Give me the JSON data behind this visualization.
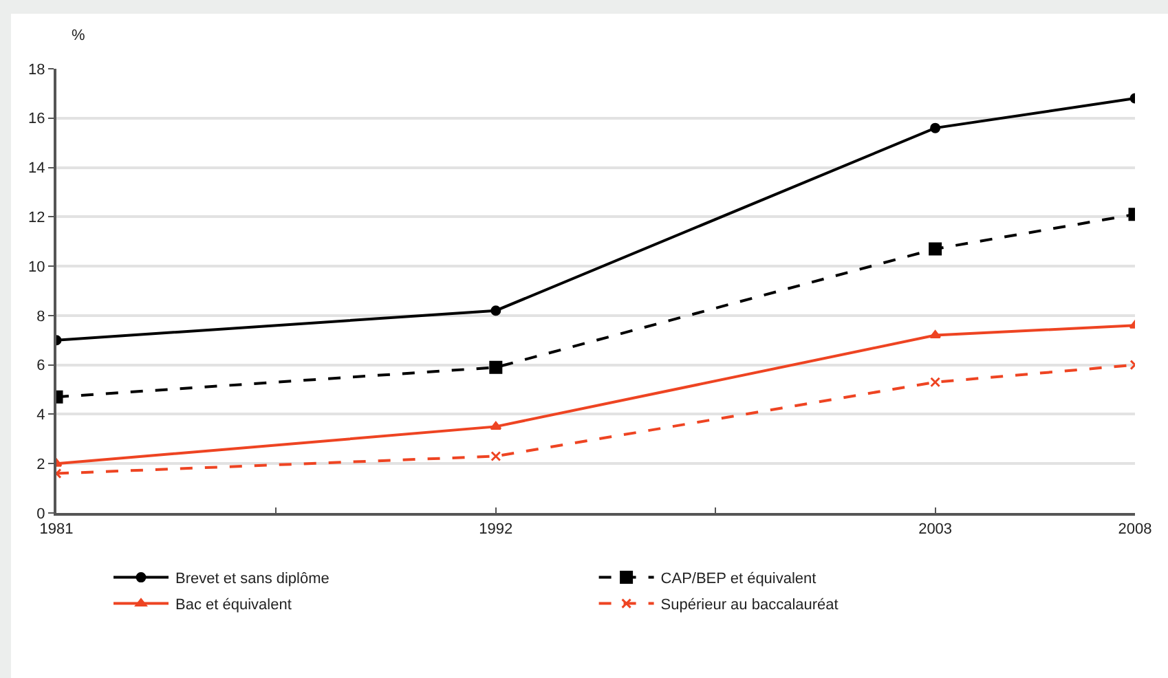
{
  "chart_data": {
    "type": "line",
    "ylabel": "%",
    "x": [
      1981,
      1992,
      2003,
      2008
    ],
    "xlim": [
      1981,
      2008
    ],
    "xticks": [
      1981,
      {
        "value": 1986.5,
        "label": null
      },
      1992,
      {
        "value": 1997.5,
        "label": null
      },
      2003,
      2008
    ],
    "ylim": [
      0,
      18
    ],
    "yticks": [
      0,
      2,
      4,
      6,
      8,
      10,
      12,
      14,
      16,
      18
    ],
    "grid": "y",
    "legend": "bottom",
    "series": [
      {
        "name": "Brevet et sans diplôme",
        "color": "#000000",
        "marker": "circle",
        "line_style": "solid",
        "values": [
          7.0,
          8.2,
          15.6,
          16.8
        ]
      },
      {
        "name": "CAP/BEP et équivalent",
        "color": "#000000",
        "marker": "square",
        "line_style": "dashed",
        "values": [
          4.7,
          5.9,
          10.7,
          12.1
        ]
      },
      {
        "name": "Bac et équivalent",
        "color": "#ee4422",
        "marker": "triangle",
        "line_style": "solid",
        "values": [
          2.0,
          3.5,
          7.2,
          7.6
        ]
      },
      {
        "name": "Supérieur au baccalauréat",
        "color": "#ee4422",
        "marker": "cross",
        "line_style": "dashed",
        "values": [
          1.6,
          2.3,
          5.3,
          6.0
        ]
      }
    ]
  }
}
